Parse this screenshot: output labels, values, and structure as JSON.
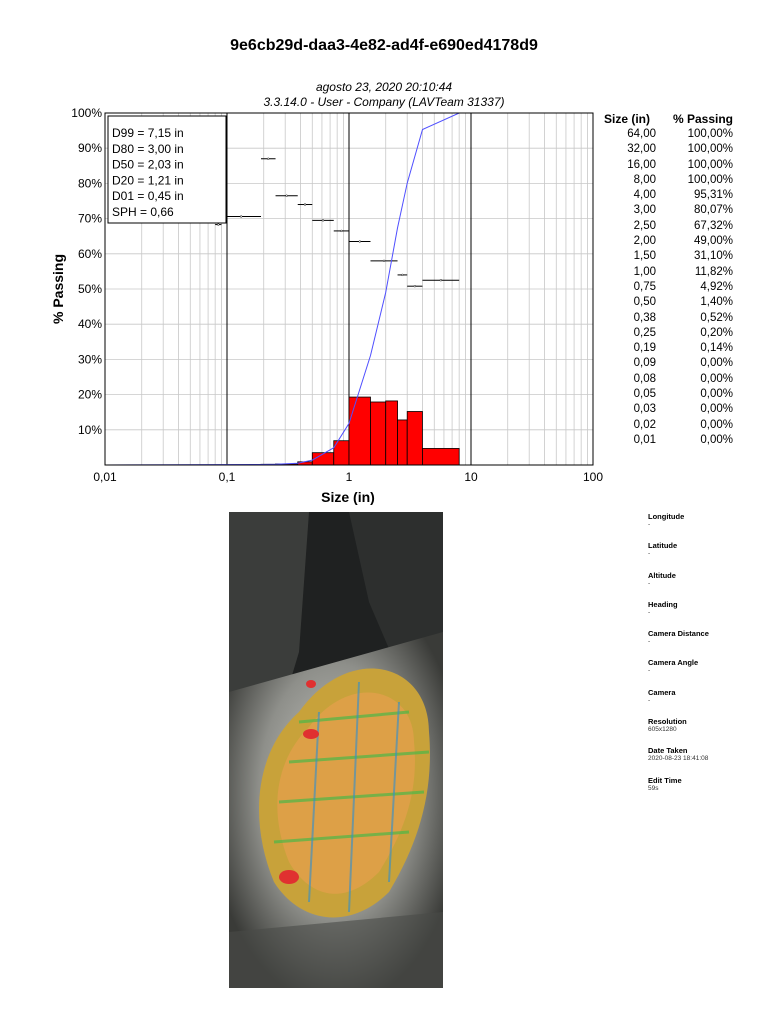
{
  "title": "9e6cb29d-daa3-4e82-ad4f-e690ed4178d9",
  "chart_data": {
    "type": "bar",
    "title_line1": "agosto 23, 2020 20:10:44",
    "title_line2": "3.3.14.0  -  User - Company (LAVTeam 31337)",
    "xlabel": "Size (in)",
    "ylabel": "% Passing",
    "x_scale": "log",
    "xlim": [
      0.01,
      100
    ],
    "ylim": [
      0,
      100
    ],
    "x_tick_labels": [
      "0,01",
      "0,1",
      "1",
      "10",
      "100"
    ],
    "y_tick_labels": [
      "10%",
      "20%",
      "30%",
      "40%",
      "50%",
      "60%",
      "70%",
      "80%",
      "90%",
      "100%"
    ],
    "stats": [
      "D99 = 7,15 in",
      "D80 = 3,00 in",
      "D50 = 2,03 in",
      "D20 = 1,21 in",
      "D01 = 0,45 in",
      "SPH = 0,66"
    ],
    "histogram": [
      {
        "from": 0.01,
        "to": 0.19,
        "value": 0.0
      },
      {
        "from": 0.19,
        "to": 0.25,
        "value": 0.2
      },
      {
        "from": 0.25,
        "to": 0.38,
        "value": 0.3
      },
      {
        "from": 0.38,
        "to": 0.5,
        "value": 0.9
      },
      {
        "from": 0.5,
        "to": 0.75,
        "value": 3.5
      },
      {
        "from": 0.75,
        "to": 1.0,
        "value": 6.9
      },
      {
        "from": 1.0,
        "to": 1.5,
        "value": 19.3
      },
      {
        "from": 1.5,
        "to": 2.0,
        "value": 17.9
      },
      {
        "from": 2.0,
        "to": 2.5,
        "value": 18.2
      },
      {
        "from": 2.5,
        "to": 3.0,
        "value": 12.8
      },
      {
        "from": 3.0,
        "to": 4.0,
        "value": 15.2
      },
      {
        "from": 4.0,
        "to": 8.0,
        "value": 4.7
      }
    ],
    "shape_markers": [
      {
        "from": 0.08,
        "to": 0.09,
        "value": 68.3
      },
      {
        "from": 0.09,
        "to": 0.19,
        "value": 70.6
      },
      {
        "from": 0.19,
        "to": 0.25,
        "value": 87.0
      },
      {
        "from": 0.25,
        "to": 0.38,
        "value": 76.5
      },
      {
        "from": 0.38,
        "to": 0.5,
        "value": 74.0
      },
      {
        "from": 0.5,
        "to": 0.75,
        "value": 69.5
      },
      {
        "from": 0.75,
        "to": 1.0,
        "value": 66.5
      },
      {
        "from": 1.0,
        "to": 1.5,
        "value": 63.5
      },
      {
        "from": 1.5,
        "to": 2.5,
        "value": 58.0
      },
      {
        "from": 2.5,
        "to": 3.0,
        "value": 54.0
      },
      {
        "from": 3.0,
        "to": 4.0,
        "value": 50.8
      },
      {
        "from": 4.0,
        "to": 8.0,
        "value": 52.5
      }
    ],
    "table_headers": [
      "Size (in)",
      "% Passing"
    ],
    "table": [
      {
        "size": "64,00",
        "passing": "100,00%"
      },
      {
        "size": "32,00",
        "passing": "100,00%"
      },
      {
        "size": "16,00",
        "passing": "100,00%"
      },
      {
        "size": "8,00",
        "passing": "100,00%"
      },
      {
        "size": "4,00",
        "passing": "95,31%"
      },
      {
        "size": "3,00",
        "passing": "80,07%"
      },
      {
        "size": "2,50",
        "passing": "67,32%"
      },
      {
        "size": "2,00",
        "passing": "49,00%"
      },
      {
        "size": "1,50",
        "passing": "31,10%"
      },
      {
        "size": "1,00",
        "passing": "11,82%"
      },
      {
        "size": "0,75",
        "passing": "4,92%"
      },
      {
        "size": "0,50",
        "passing": "1,40%"
      },
      {
        "size": "0,38",
        "passing": "0,52%"
      },
      {
        "size": "0,25",
        "passing": "0,20%"
      },
      {
        "size": "0,19",
        "passing": "0,14%"
      },
      {
        "size": "0,09",
        "passing": "0,00%"
      },
      {
        "size": "0,08",
        "passing": "0,00%"
      },
      {
        "size": "0,05",
        "passing": "0,00%"
      },
      {
        "size": "0,03",
        "passing": "0,00%"
      },
      {
        "size": "0,02",
        "passing": "0,00%"
      },
      {
        "size": "0,01",
        "passing": "0,00%"
      }
    ],
    "curve": [
      [
        0.01,
        0
      ],
      [
        0.19,
        0.14
      ],
      [
        0.25,
        0.2
      ],
      [
        0.38,
        0.52
      ],
      [
        0.5,
        1.4
      ],
      [
        0.75,
        4.92
      ],
      [
        1.0,
        11.82
      ],
      [
        1.5,
        31.1
      ],
      [
        2.0,
        49.0
      ],
      [
        2.5,
        67.32
      ],
      [
        3.0,
        80.07
      ],
      [
        4.0,
        95.31
      ],
      [
        8.0,
        100
      ],
      [
        16.0,
        100
      ],
      [
        32.0,
        100
      ],
      [
        64.0,
        100
      ]
    ],
    "colors": {
      "bars": "#ff0000",
      "curve": "#4f4fff",
      "grid": "#c8c8c8"
    }
  },
  "metadata": [
    {
      "label": "Longitude",
      "value": "-"
    },
    {
      "label": "Latitude",
      "value": "-"
    },
    {
      "label": "Altitude",
      "value": "-"
    },
    {
      "label": "Heading",
      "value": "-"
    },
    {
      "label": "Camera Distance",
      "value": "-"
    },
    {
      "label": "Camera Angle",
      "value": "-"
    },
    {
      "label": "Camera",
      "value": "-"
    },
    {
      "label": "Resolution",
      "value": "605x1280"
    },
    {
      "label": "Date Taken",
      "value": "2020-08-23 18:41:08"
    },
    {
      "label": "Edit Time",
      "value": "59s"
    }
  ]
}
